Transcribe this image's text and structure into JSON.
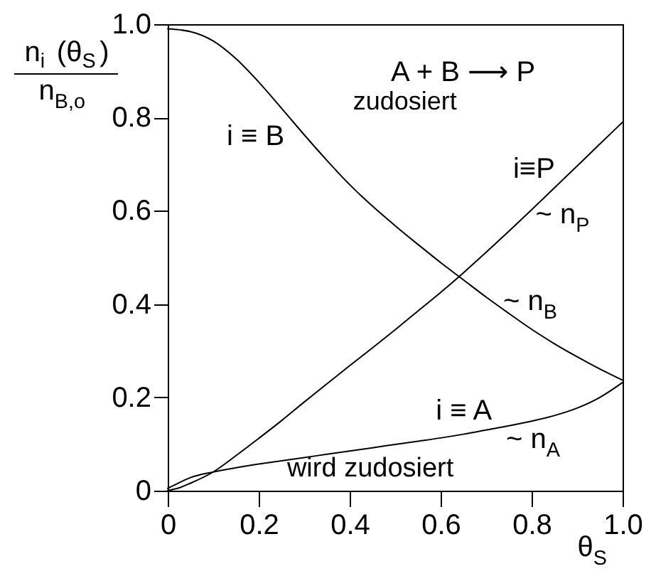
{
  "chart_data": {
    "type": "line",
    "ylabel": "n$_{i}$ (θ$_{S}$)\nn$_{B,o}$",
    "xlabel": "θ$_{S}$",
    "x": [
      0,
      0.025,
      0.05,
      0.1,
      0.15,
      0.2,
      0.25,
      0.3,
      0.35,
      0.4,
      0.45,
      0.5,
      0.55,
      0.6,
      0.65,
      0.7,
      0.75,
      0.8,
      0.85,
      0.9,
      0.95,
      1.0
    ],
    "xlim": [
      0,
      1
    ],
    "ylim": [
      0,
      1
    ],
    "xticks": [
      0,
      0.2,
      0.4,
      0.6,
      0.8,
      {
        "value": 1,
        "label": "1.0"
      }
    ],
    "yticks": [
      0,
      0.2,
      0.4,
      0.6,
      0.8,
      {
        "value": 1,
        "label": "1.0"
      }
    ],
    "series": [
      {
        "color": "#000000",
        "values": [
          0.99,
          0.988,
          0.984,
          0.964,
          0.926,
          0.876,
          0.82,
          0.763,
          0.708,
          0.656,
          0.61,
          0.568,
          0.528,
          0.489,
          0.452,
          0.415,
          0.38,
          0.346,
          0.315,
          0.287,
          0.261,
          0.237
        ]
      },
      {
        "color": "#000000",
        "values": [
          0,
          0.006,
          0.016,
          0.04,
          0.075,
          0.112,
          0.15,
          0.19,
          0.229,
          0.268,
          0.306,
          0.345,
          0.385,
          0.425,
          0.467,
          0.511,
          0.556,
          0.602,
          0.649,
          0.696,
          0.743,
          0.79
        ]
      },
      {
        "color": "#000000",
        "values": [
          0.005,
          0.017,
          0.028,
          0.04,
          0.049,
          0.057,
          0.064,
          0.071,
          0.078,
          0.085,
          0.092,
          0.099,
          0.106,
          0.113,
          0.121,
          0.13,
          0.139,
          0.149,
          0.161,
          0.177,
          0.2,
          0.232
        ]
      }
    ],
    "annotations": [
      "A + B ⟶ P",
      "zudosiert",
      "i ≡ B",
      "i≡P",
      "~ n$_{P}$",
      "~ n$_{B}$",
      "i ≡ A",
      "~ n$_{A}$",
      "wird zudosiert"
    ]
  }
}
